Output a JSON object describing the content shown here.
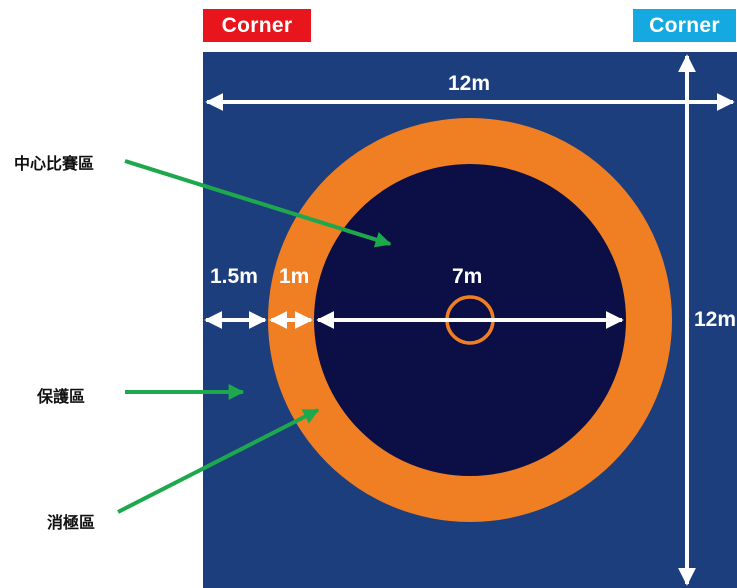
{
  "corners": {
    "left": {
      "label": "Corner",
      "color": "#E8161C"
    },
    "right": {
      "label": "Corner",
      "color": "#14A9E1"
    }
  },
  "colors": {
    "mat_background": "#1D3E7D",
    "protection_ring": "#F07F24",
    "central_area": "#0B0F45",
    "center_circle": "#F07F24",
    "pointer_arrows": "#1DA84E",
    "dimension_arrows": "#FFFFFF"
  },
  "dimensions": {
    "top_width": "12m",
    "side_height": "12m",
    "safety_margin": "1.5m",
    "passivity_zone": "1m",
    "central_diameter": "7m"
  },
  "zones": {
    "central": "中心比賽區",
    "protection": "保護區",
    "passivity": "消極區"
  }
}
